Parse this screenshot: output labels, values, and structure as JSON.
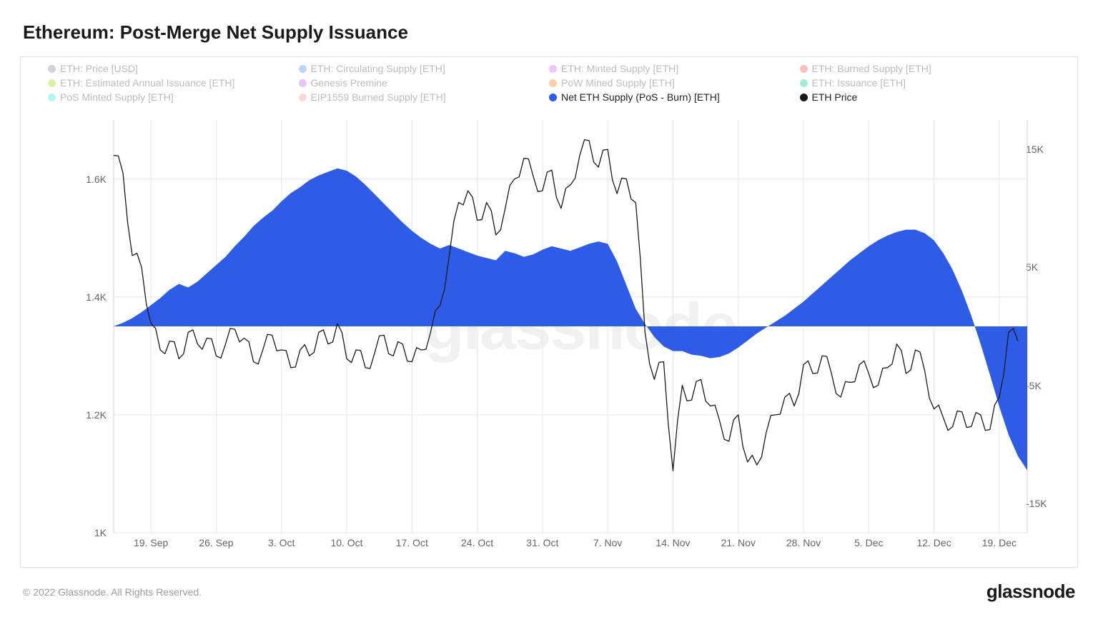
{
  "title": "Ethereum: Post-Merge Net Supply Issuance",
  "copyright": "© 2022 Glassnode. All Rights Reserved.",
  "brand": "glassnode",
  "watermark": "glassnode",
  "legend": {
    "muted": [
      {
        "label": "ETH: Price [USD]",
        "color": "#9e9e9e"
      },
      {
        "label": "ETH: Circulating Supply [ETH]",
        "color": "#6aa0ff"
      },
      {
        "label": "ETH: Minted Supply [ETH]",
        "color": "#e879f9"
      },
      {
        "label": "ETH: Burned Supply [ETH]",
        "color": "#fb6f6f"
      },
      {
        "label": "ETH: Estimated Annual Issuance [ETH]",
        "color": "#a3e635"
      },
      {
        "label": "Genesis Premine",
        "color": "#c084fc"
      },
      {
        "label": "PoW Mined Supply [ETH]",
        "color": "#fb923c"
      },
      {
        "label": "ETH: Issuance [ETH]",
        "color": "#34d399"
      },
      {
        "label": "PoS Minted Supply [ETH]",
        "color": "#5eead4"
      },
      {
        "label": "EIP1559 Burned Supply [ETH]",
        "color": "#fda4af"
      }
    ],
    "active": [
      {
        "label": "Net ETH Supply (PoS - Burn) [ETH]",
        "color": "#2e5ce6"
      },
      {
        "label": "ETH Price",
        "color": "#1a1a1a"
      }
    ]
  },
  "chart": {
    "background": "#ffffff",
    "grid_color": "#e8e8e8",
    "border_color": "#cfcfcf",
    "area_color": "#2e5ce6",
    "price_color": "#1a1a1a",
    "left_axis": {
      "min": 1000,
      "max": 1700,
      "ticks": [
        {
          "v": 1000,
          "l": "1K"
        },
        {
          "v": 1200,
          "l": "1.2K"
        },
        {
          "v": 1400,
          "l": "1.4K"
        },
        {
          "v": 1600,
          "l": "1.6K"
        }
      ]
    },
    "right_axis": {
      "min": -17500,
      "max": 17500,
      "zero": 0,
      "ticks": [
        {
          "v": -15000,
          "l": "-15K"
        },
        {
          "v": -5000,
          "l": "-5K"
        },
        {
          "v": 5000,
          "l": "5K"
        },
        {
          "v": 15000,
          "l": "15K"
        }
      ]
    },
    "x_axis": {
      "min": 0,
      "max": 98,
      "ticks": [
        {
          "v": 4,
          "l": "19. Sep"
        },
        {
          "v": 11,
          "l": "26. Sep"
        },
        {
          "v": 18,
          "l": "3. Oct"
        },
        {
          "v": 25,
          "l": "10. Oct"
        },
        {
          "v": 32,
          "l": "17. Oct"
        },
        {
          "v": 39,
          "l": "24. Oct"
        },
        {
          "v": 46,
          "l": "31. Oct"
        },
        {
          "v": 53,
          "l": "7. Nov"
        },
        {
          "v": 60,
          "l": "14. Nov"
        },
        {
          "v": 67,
          "l": "21. Nov"
        },
        {
          "v": 74,
          "l": "28. Nov"
        },
        {
          "v": 81,
          "l": "5. Dec"
        },
        {
          "v": 88,
          "l": "12. Dec"
        },
        {
          "v": 95,
          "l": "19. Dec"
        }
      ]
    },
    "net_supply": [
      0,
      300,
      700,
      1200,
      1800,
      2400,
      3100,
      3600,
      3300,
      3800,
      4500,
      5200,
      5900,
      6800,
      7600,
      8500,
      9200,
      9800,
      10600,
      11300,
      11800,
      12400,
      12800,
      13100,
      13400,
      13200,
      12700,
      12000,
      11200,
      10400,
      9600,
      8800,
      8100,
      7500,
      7000,
      6600,
      6900,
      6600,
      6300,
      6000,
      5800,
      5600,
      6400,
      6200,
      5900,
      6100,
      6500,
      6800,
      6600,
      6400,
      6700,
      7000,
      7200,
      7000,
      5500,
      3500,
      1500,
      200,
      -900,
      -1700,
      -2100,
      -2100,
      -2400,
      -2500,
      -2700,
      -2600,
      -2300,
      -1800,
      -1200,
      -600,
      -100,
      400,
      900,
      1500,
      2100,
      2800,
      3500,
      4200,
      4900,
      5600,
      6200,
      6800,
      7300,
      7700,
      8000,
      8200,
      8200,
      7900,
      7300,
      6200,
      4800,
      3000,
      900,
      -1500,
      -4100,
      -6800,
      -9200,
      -11000,
      -12200
    ],
    "price": [
      1640,
      1610,
      1470,
      1450,
      1355,
      1310,
      1325,
      1295,
      1340,
      1320,
      1330,
      1300,
      1320,
      1345,
      1330,
      1290,
      1310,
      1335,
      1310,
      1280,
      1310,
      1300,
      1340,
      1320,
      1355,
      1295,
      1310,
      1280,
      1305,
      1335,
      1300,
      1320,
      1290,
      1310,
      1340,
      1385,
      1470,
      1560,
      1580,
      1530,
      1560,
      1505,
      1550,
      1600,
      1635,
      1605,
      1580,
      1615,
      1550,
      1590,
      1640,
      1665,
      1620,
      1650,
      1575,
      1600,
      1560,
      1340,
      1260,
      1290,
      1105,
      1250,
      1225,
      1260,
      1215,
      1190,
      1155,
      1200,
      1120,
      1115,
      1170,
      1200,
      1230,
      1215,
      1285,
      1270,
      1300,
      1270,
      1230,
      1255,
      1285,
      1270,
      1250,
      1280,
      1320,
      1270,
      1310,
      1275,
      1210,
      1195,
      1180,
      1205,
      1180,
      1200,
      1175,
      1230,
      1340,
      1325
    ]
  }
}
